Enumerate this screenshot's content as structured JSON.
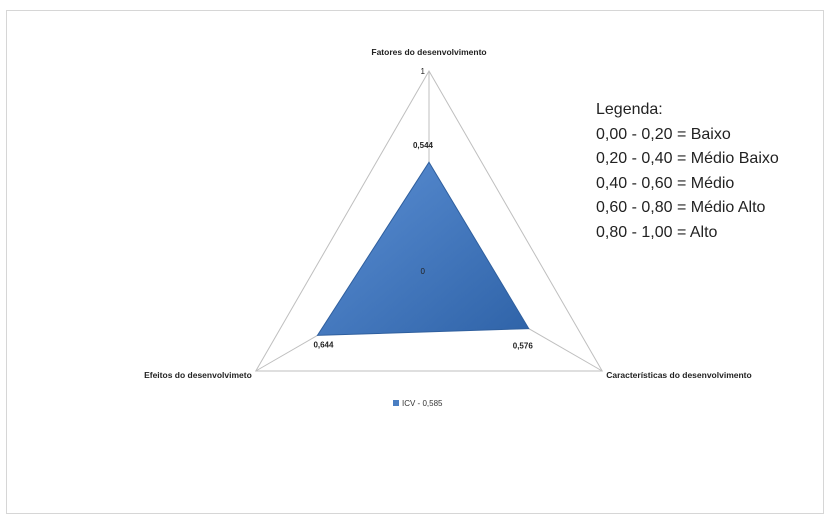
{
  "chart_data": {
    "type": "radar",
    "axes": [
      "Fatores do desenvolvimento",
      "Características do desenvolvimento",
      "Efeitos do desenvolvimeto"
    ],
    "range": [
      0,
      1
    ],
    "tick_labels": [
      "0",
      "1"
    ],
    "series": [
      {
        "name": "ICV - 0,585",
        "values": [
          0.544,
          0.576,
          0.644
        ],
        "value_labels": [
          "0,544",
          "0,576",
          "0,644"
        ],
        "color": "#4a7ec2"
      }
    ],
    "legend_position": "bottom"
  },
  "annotation": {
    "title": "Legenda:",
    "items": [
      "0,00 - 0,20 = Baixo",
      "0,20 - 0,40 = Médio Baixo",
      "0,40 - 0,60 = Médio",
      "0,60 - 0,80 = Médio Alto",
      "0,80 - 1,00 = Alto"
    ]
  },
  "colors": {
    "series_fill": "#4a7ec2",
    "series_edge": "#2f5f9e",
    "grid": "#bfbfbf"
  }
}
